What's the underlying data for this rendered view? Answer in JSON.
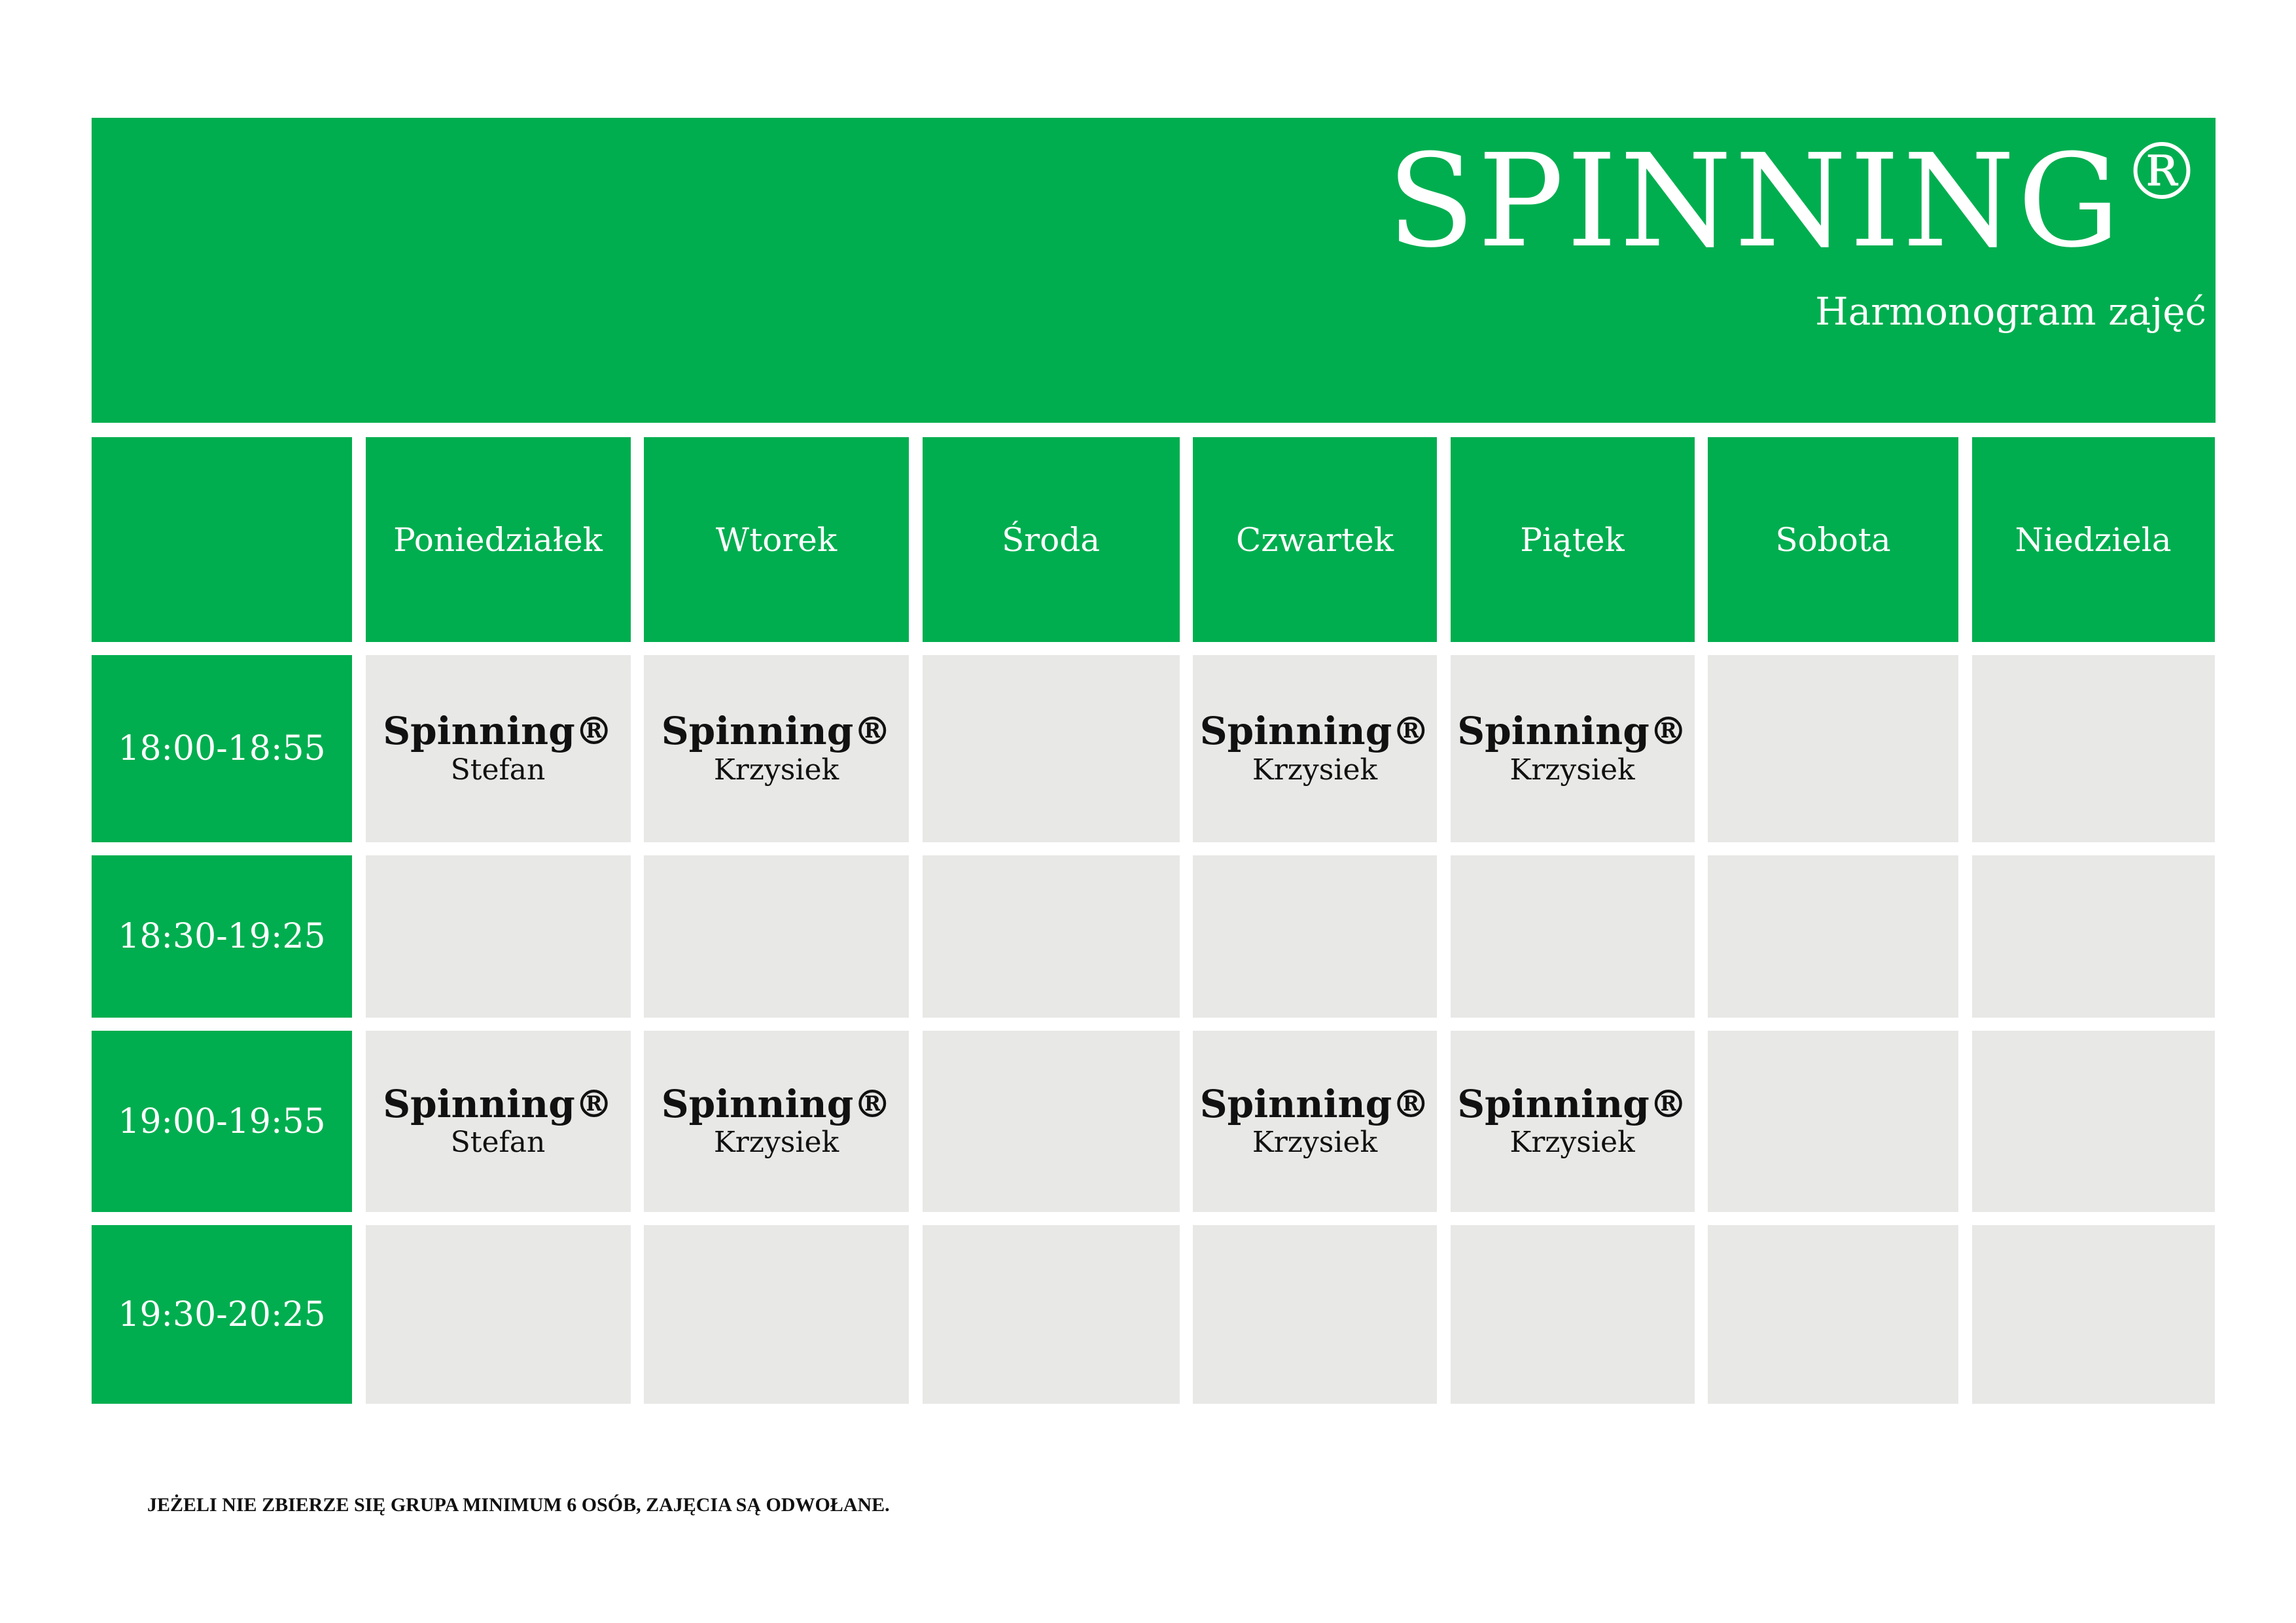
{
  "header": {
    "title": "SPINNING",
    "title_mark": "®",
    "subtitle": "Harmonogram zajęć"
  },
  "colors": {
    "accent": "#00AE4F",
    "cell_bg": "#E8E8E6"
  },
  "days": [
    "Poniedziałek",
    "Wtorek",
    "Środa",
    "Czwartek",
    "Piątek",
    "Sobota",
    "Niedziela"
  ],
  "rows": [
    {
      "time": "18:00-18:55",
      "cells": [
        {
          "title": "Spinning®",
          "instructor": "Stefan"
        },
        {
          "title": "Spinning®",
          "instructor": "Krzysiek"
        },
        null,
        {
          "title": "Spinning®",
          "instructor": "Krzysiek"
        },
        {
          "title": "Spinning®",
          "instructor": "Krzysiek"
        },
        null,
        null
      ]
    },
    {
      "time": "18:30-19:25",
      "cells": [
        null,
        null,
        null,
        null,
        null,
        null,
        null
      ]
    },
    {
      "time": "19:00-19:55",
      "cells": [
        {
          "title": "Spinning®",
          "instructor": "Stefan"
        },
        {
          "title": "Spinning®",
          "instructor": "Krzysiek"
        },
        null,
        {
          "title": "Spinning®",
          "instructor": "Krzysiek"
        },
        {
          "title": "Spinning®",
          "instructor": "Krzysiek"
        },
        null,
        null
      ]
    },
    {
      "time": "19:30-20:25",
      "cells": [
        null,
        null,
        null,
        null,
        null,
        null,
        null
      ]
    }
  ],
  "footer": {
    "note": "JEŻELI NIE ZBIERZE SIĘ GRUPA MINIMUM 6 OSÓB, ZAJĘCIA SĄ ODWOŁANE."
  }
}
